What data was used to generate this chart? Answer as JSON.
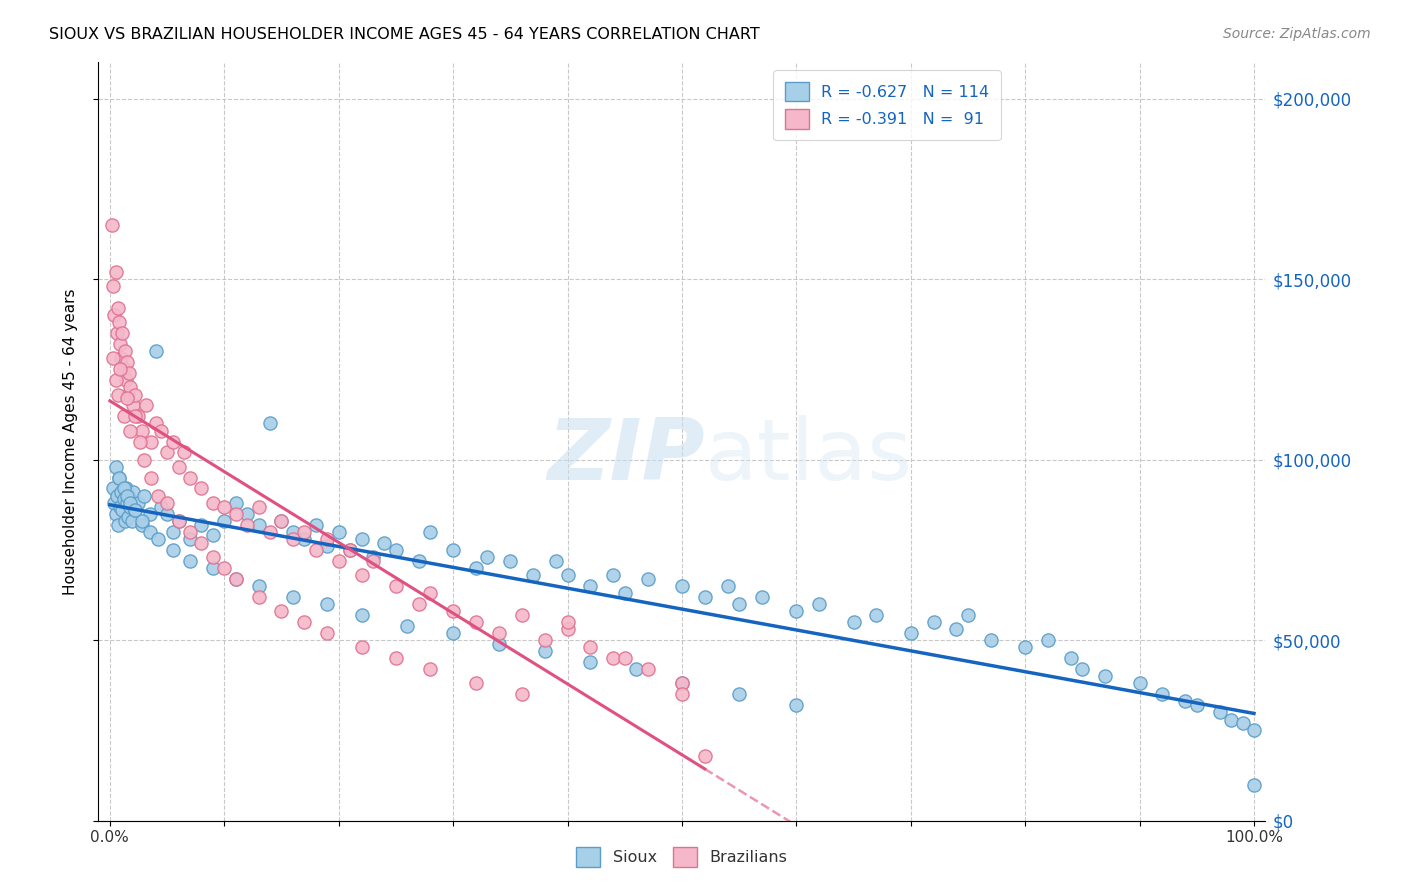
{
  "title": "SIOUX VS BRAZILIAN HOUSEHOLDER INCOME AGES 45 - 64 YEARS CORRELATION CHART",
  "source": "Source: ZipAtlas.com",
  "ylabel": "Householder Income Ages 45 - 64 years",
  "xlim": [
    -0.01,
    1.01
  ],
  "ylim": [
    0,
    210000
  ],
  "yticks": [
    0,
    50000,
    100000,
    150000,
    200000
  ],
  "ytick_labels": [
    "$0",
    "$50,000",
    "$100,000",
    "$150,000",
    "$200,000"
  ],
  "sioux_color": "#a8cfe8",
  "sioux_edge_color": "#5b9dc9",
  "brazilian_color": "#f5b8cb",
  "brazilian_edge_color": "#e0728e",
  "trend_sioux_color": "#1565c0",
  "trend_brazilian_color": "#e05080",
  "watermark_color": "#ddeeff",
  "sioux_x": [
    0.003,
    0.004,
    0.005,
    0.006,
    0.007,
    0.008,
    0.009,
    0.01,
    0.011,
    0.012,
    0.013,
    0.014,
    0.015,
    0.016,
    0.017,
    0.018,
    0.019,
    0.02,
    0.022,
    0.025,
    0.028,
    0.03,
    0.035,
    0.04,
    0.045,
    0.05,
    0.055,
    0.06,
    0.07,
    0.08,
    0.09,
    0.1,
    0.11,
    0.12,
    0.13,
    0.14,
    0.15,
    0.16,
    0.17,
    0.18,
    0.19,
    0.2,
    0.21,
    0.22,
    0.23,
    0.24,
    0.25,
    0.27,
    0.28,
    0.3,
    0.32,
    0.33,
    0.35,
    0.37,
    0.39,
    0.4,
    0.42,
    0.44,
    0.45,
    0.47,
    0.5,
    0.52,
    0.54,
    0.55,
    0.57,
    0.6,
    0.62,
    0.65,
    0.67,
    0.7,
    0.72,
    0.74,
    0.75,
    0.77,
    0.8,
    0.82,
    0.84,
    0.85,
    0.87,
    0.9,
    0.92,
    0.94,
    0.95,
    0.97,
    0.98,
    0.99,
    1.0,
    1.0,
    0.005,
    0.008,
    0.012,
    0.015,
    0.018,
    0.022,
    0.028,
    0.035,
    0.042,
    0.055,
    0.07,
    0.09,
    0.11,
    0.13,
    0.16,
    0.19,
    0.22,
    0.26,
    0.3,
    0.34,
    0.38,
    0.42,
    0.46,
    0.5,
    0.55,
    0.6
  ],
  "sioux_y": [
    92000,
    88000,
    85000,
    90000,
    82000,
    95000,
    87000,
    91000,
    86000,
    89000,
    83000,
    92000,
    88000,
    84000,
    90000,
    87000,
    83000,
    91000,
    86000,
    88000,
    82000,
    90000,
    85000,
    130000,
    87000,
    85000,
    80000,
    83000,
    78000,
    82000,
    79000,
    83000,
    88000,
    85000,
    82000,
    110000,
    83000,
    80000,
    78000,
    82000,
    76000,
    80000,
    75000,
    78000,
    73000,
    77000,
    75000,
    72000,
    80000,
    75000,
    70000,
    73000,
    72000,
    68000,
    72000,
    68000,
    65000,
    68000,
    63000,
    67000,
    65000,
    62000,
    65000,
    60000,
    62000,
    58000,
    60000,
    55000,
    57000,
    52000,
    55000,
    53000,
    57000,
    50000,
    48000,
    50000,
    45000,
    42000,
    40000,
    38000,
    35000,
    33000,
    32000,
    30000,
    28000,
    27000,
    25000,
    10000,
    98000,
    95000,
    92000,
    90000,
    88000,
    86000,
    83000,
    80000,
    78000,
    75000,
    72000,
    70000,
    67000,
    65000,
    62000,
    60000,
    57000,
    54000,
    52000,
    49000,
    47000,
    44000,
    42000,
    38000,
    35000,
    32000
  ],
  "brazilian_x": [
    0.002,
    0.003,
    0.004,
    0.005,
    0.006,
    0.007,
    0.008,
    0.009,
    0.01,
    0.011,
    0.012,
    0.013,
    0.014,
    0.015,
    0.016,
    0.017,
    0.018,
    0.02,
    0.022,
    0.025,
    0.028,
    0.032,
    0.036,
    0.04,
    0.045,
    0.05,
    0.055,
    0.06,
    0.065,
    0.07,
    0.08,
    0.09,
    0.1,
    0.11,
    0.12,
    0.13,
    0.14,
    0.15,
    0.16,
    0.17,
    0.18,
    0.19,
    0.2,
    0.21,
    0.22,
    0.23,
    0.25,
    0.27,
    0.28,
    0.3,
    0.32,
    0.34,
    0.36,
    0.38,
    0.4,
    0.42,
    0.44,
    0.47,
    0.5,
    0.003,
    0.005,
    0.007,
    0.009,
    0.012,
    0.015,
    0.018,
    0.022,
    0.026,
    0.03,
    0.036,
    0.042,
    0.05,
    0.06,
    0.07,
    0.08,
    0.09,
    0.1,
    0.11,
    0.13,
    0.15,
    0.17,
    0.19,
    0.22,
    0.25,
    0.28,
    0.32,
    0.36,
    0.4,
    0.45,
    0.5,
    0.52
  ],
  "brazilian_y": [
    165000,
    148000,
    140000,
    152000,
    135000,
    142000,
    138000,
    132000,
    128000,
    135000,
    125000,
    130000,
    122000,
    127000,
    118000,
    124000,
    120000,
    115000,
    118000,
    112000,
    108000,
    115000,
    105000,
    110000,
    108000,
    102000,
    105000,
    98000,
    102000,
    95000,
    92000,
    88000,
    87000,
    85000,
    82000,
    87000,
    80000,
    83000,
    78000,
    80000,
    75000,
    78000,
    72000,
    75000,
    68000,
    72000,
    65000,
    60000,
    63000,
    58000,
    55000,
    52000,
    57000,
    50000,
    53000,
    48000,
    45000,
    42000,
    38000,
    128000,
    122000,
    118000,
    125000,
    112000,
    117000,
    108000,
    112000,
    105000,
    100000,
    95000,
    90000,
    88000,
    83000,
    80000,
    77000,
    73000,
    70000,
    67000,
    62000,
    58000,
    55000,
    52000,
    48000,
    45000,
    42000,
    38000,
    35000,
    55000,
    45000,
    35000,
    18000
  ],
  "legend_R_sioux": "R = -0.627",
  "legend_N_sioux": "N = 114",
  "legend_R_brazilian": "R = -0.391",
  "legend_N_brazilian": "N =  91"
}
